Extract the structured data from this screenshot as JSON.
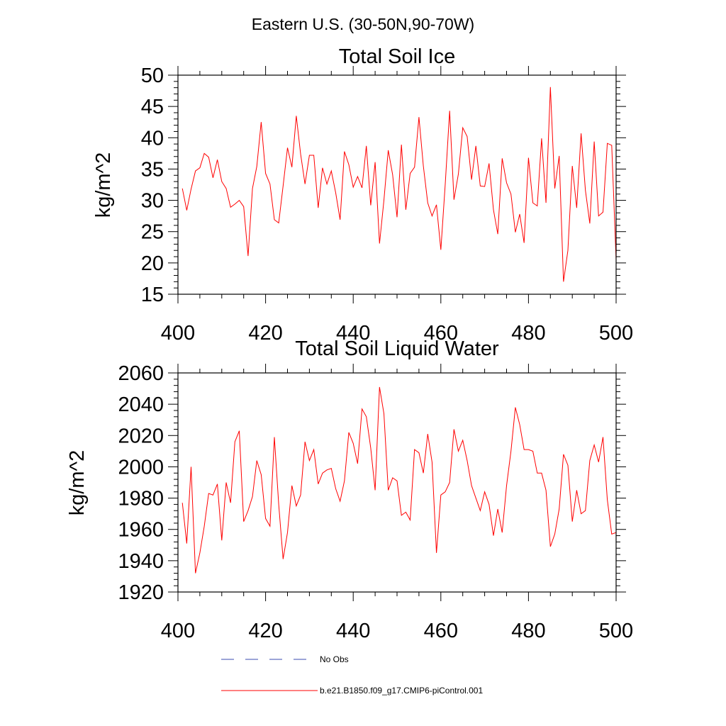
{
  "figure_title": "Eastern U.S. (30-50N,90-70W)",
  "chart_data": [
    {
      "type": "line",
      "title": "Total Soil Ice",
      "ylabel": "kg/m^2",
      "xlabel": "",
      "xlim": [
        400,
        500
      ],
      "ylim": [
        15,
        50
      ],
      "xticks": [
        400,
        420,
        440,
        460,
        480,
        500
      ],
      "yticks": [
        15,
        20,
        25,
        30,
        35,
        40,
        45,
        50
      ],
      "x_minor_step": 5,
      "y_minor_step": 1,
      "series": [
        {
          "name": "b.e21.B1850.f09_g17.CMIP6-piControl.001",
          "color": "#ff0000",
          "x": [
            401,
            402,
            403,
            404,
            405,
            406,
            407,
            408,
            409,
            410,
            411,
            412,
            413,
            414,
            415,
            416,
            417,
            418,
            419,
            420,
            421,
            422,
            423,
            424,
            425,
            426,
            427,
            428,
            429,
            430,
            431,
            432,
            433,
            434,
            435,
            436,
            437,
            438,
            439,
            440,
            441,
            442,
            443,
            444,
            445,
            446,
            447,
            448,
            449,
            450,
            451,
            452,
            453,
            454,
            455,
            456,
            457,
            458,
            459,
            460,
            461,
            462,
            463,
            464,
            465,
            466,
            467,
            468,
            469,
            470,
            471,
            472,
            473,
            474,
            475,
            476,
            477,
            478,
            479,
            480,
            481,
            482,
            483,
            484,
            485,
            486,
            487,
            488,
            489,
            490,
            491,
            492,
            493,
            494,
            495,
            496,
            497,
            498,
            499,
            500
          ],
          "values": [
            31.9,
            28.4,
            31.8,
            34.7,
            35.2,
            37.5,
            36.9,
            33.6,
            36.5,
            33.0,
            31.9,
            28.9,
            29.4,
            30.0,
            29.0,
            21.1,
            31.9,
            35.4,
            42.5,
            34.3,
            32.6,
            26.9,
            26.4,
            32.3,
            38.4,
            35.3,
            43.5,
            37.4,
            32.6,
            37.2,
            37.2,
            28.8,
            35.2,
            32.6,
            34.7,
            31.2,
            26.9,
            37.8,
            35.7,
            32.1,
            33.8,
            32.0,
            38.7,
            29.2,
            36.1,
            23.1,
            30.0,
            38.0,
            34.1,
            27.3,
            38.9,
            28.5,
            34.3,
            35.3,
            43.3,
            35.5,
            29.6,
            27.5,
            29.3,
            22.1,
            32.6,
            44.3,
            30.1,
            34.2,
            41.6,
            40.2,
            33.3,
            38.7,
            32.3,
            32.2,
            35.9,
            28.5,
            24.6,
            36.7,
            32.8,
            31.0,
            24.9,
            27.8,
            23.2,
            36.8,
            29.6,
            29.1,
            39.9,
            29.6,
            48.1,
            31.9,
            37.1,
            17.0,
            22.0,
            35.5,
            28.8,
            40.7,
            31.6,
            26.3,
            39.4,
            27.5,
            28.1,
            39.1,
            38.8,
            20.5
          ]
        }
      ]
    },
    {
      "type": "line",
      "title": "Total Soil Liquid Water",
      "ylabel": "kg/m^2",
      "xlabel": "",
      "xlim": [
        400,
        500
      ],
      "ylim": [
        1920,
        2060
      ],
      "xticks": [
        400,
        420,
        440,
        460,
        480,
        500
      ],
      "yticks": [
        1920,
        1940,
        1960,
        1980,
        2000,
        2020,
        2040,
        2060
      ],
      "x_minor_step": 5,
      "y_minor_step": 4,
      "series": [
        {
          "name": "b.e21.B1850.f09_g17.CMIP6-piControl.001",
          "color": "#ff0000",
          "x": [
            401,
            402,
            403,
            404,
            405,
            406,
            407,
            408,
            409,
            410,
            411,
            412,
            413,
            414,
            415,
            416,
            417,
            418,
            419,
            420,
            421,
            422,
            423,
            424,
            425,
            426,
            427,
            428,
            429,
            430,
            431,
            432,
            433,
            434,
            435,
            436,
            437,
            438,
            439,
            440,
            441,
            442,
            443,
            444,
            445,
            446,
            447,
            448,
            449,
            450,
            451,
            452,
            453,
            454,
            455,
            456,
            457,
            458,
            459,
            460,
            461,
            462,
            463,
            464,
            465,
            466,
            467,
            468,
            469,
            470,
            471,
            472,
            473,
            474,
            475,
            476,
            477,
            478,
            479,
            480,
            481,
            482,
            483,
            484,
            485,
            486,
            487,
            488,
            489,
            490,
            491,
            492,
            493,
            494,
            495,
            496,
            497,
            498,
            499,
            500
          ],
          "values": [
            1977,
            1951,
            2000,
            1932,
            1945,
            1962,
            1983,
            1982,
            1989,
            1953,
            1990,
            1977,
            2016,
            2023,
            1965,
            1972,
            1981,
            2004,
            1995,
            1967,
            1962,
            2019,
            1976,
            1941,
            1958,
            1988,
            1975,
            1982,
            2016,
            2004,
            2011,
            1989,
            1996,
            1998,
            1999,
            1986,
            1978,
            1991,
            2022,
            2015,
            2002,
            2037,
            2032,
            2012,
            1985,
            2051,
            2034,
            1985,
            1993,
            1991,
            1969,
            1971,
            1966,
            2011,
            2009,
            1996,
            2021,
            2003,
            1945,
            1982,
            1984,
            1990,
            2024,
            2010,
            2017,
            2004,
            1988,
            1980,
            1972,
            1984,
            1976,
            1956,
            1973,
            1958,
            1988,
            2010,
            2038,
            2027,
            2011,
            2011,
            2010,
            1996,
            1996,
            1985,
            1949,
            1957,
            1973,
            2008,
            2001,
            1965,
            1985,
            1970,
            1972,
            2004,
            2014,
            2003,
            2019,
            1979,
            1957,
            1958
          ]
        }
      ]
    }
  ],
  "legend": {
    "placement": "bottom",
    "entries": [
      {
        "label": "No Obs",
        "color": "#3a4bb0",
        "style": "dashed"
      },
      {
        "label": "b.e21.B1850.f09_g17.CMIP6-piControl.001",
        "color": "#ff0000",
        "style": "solid"
      }
    ]
  }
}
